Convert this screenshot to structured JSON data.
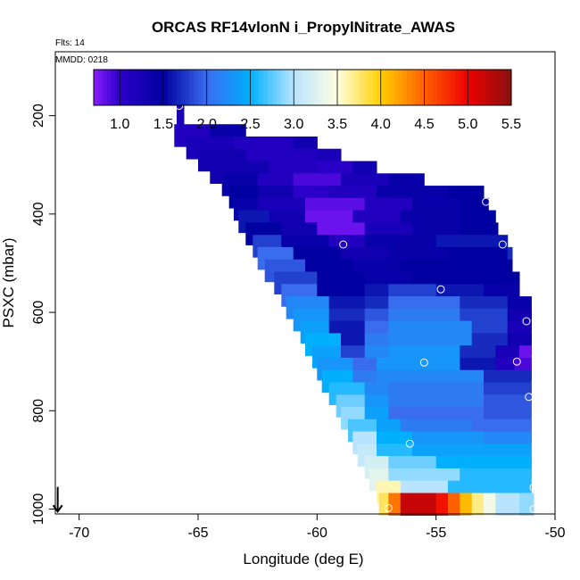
{
  "chart_data": {
    "type": "heatmap",
    "title": "ORCAS RF14vlonN i_PropylNitrate_AWAS",
    "annotations": {
      "flights": "Flts: 14",
      "date": "MMDD: 0218"
    },
    "xlabel": "Longitude (deg E)",
    "ylabel": "PSXC (mbar)",
    "xlim": [
      -71,
      -50
    ],
    "ylim": [
      1010,
      70
    ],
    "x_ticks": [
      -70,
      -65,
      -60,
      -55,
      -50
    ],
    "x_tick_labels": [
      "-70",
      "-65",
      "-60",
      "-55",
      "-50"
    ],
    "y_ticks": [
      200,
      400,
      600,
      800,
      1000
    ],
    "y_tick_labels": [
      "200",
      "400",
      "600",
      "800",
      "1000"
    ],
    "colorbar": {
      "range": [
        0.7,
        5.5
      ],
      "ticks": [
        1.0,
        1.5,
        2.0,
        2.5,
        3.0,
        3.5,
        4.0,
        4.5,
        5.0,
        5.5
      ],
      "tick_labels": [
        "1.0",
        "1.5",
        "2.0",
        "2.5",
        "3.0",
        "3.5",
        "4.0",
        "4.5",
        "5.0",
        "5.5"
      ],
      "stops": [
        [
          0.7,
          "#8a1cff"
        ],
        [
          1.0,
          "#2a00c8"
        ],
        [
          1.5,
          "#0000a0"
        ],
        [
          2.0,
          "#3a6cee"
        ],
        [
          2.5,
          "#00b0ff"
        ],
        [
          3.0,
          "#b8e4ff"
        ],
        [
          3.5,
          "#ffffe0"
        ],
        [
          4.0,
          "#ffd000"
        ],
        [
          4.5,
          "#ff6000"
        ],
        [
          5.0,
          "#ee0000"
        ],
        [
          5.5,
          "#8a1010"
        ]
      ]
    },
    "series": [
      {
        "p": 180,
        "cells": [
          [
            -65.9,
            -65.6,
            1.1
          ]
        ]
      },
      {
        "p": 200,
        "cells": [
          [
            -65.9,
            -65.6,
            1.2
          ]
        ]
      },
      {
        "p": 240,
        "cells": [
          [
            -66.0,
            -64.5,
            1.1
          ],
          [
            -64.5,
            -63.0,
            1.4
          ]
        ]
      },
      {
        "p": 265,
        "cells": [
          [
            -65.5,
            -63.5,
            1.2
          ],
          [
            -63.5,
            -61.0,
            1.1
          ],
          [
            -61.0,
            -60.0,
            1.3
          ]
        ]
      },
      {
        "p": 290,
        "cells": [
          [
            -65.0,
            -63.0,
            1.3
          ],
          [
            -63.0,
            -60.0,
            1.1
          ],
          [
            -60.0,
            -59.0,
            1.2
          ]
        ]
      },
      {
        "p": 315,
        "cells": [
          [
            -64.5,
            -62.0,
            1.3
          ],
          [
            -62.0,
            -60.0,
            1.1
          ],
          [
            -60.0,
            -58.5,
            1.0
          ],
          [
            -58.5,
            -57.5,
            1.3
          ]
        ]
      },
      {
        "p": 340,
        "cells": [
          [
            -64.0,
            -62.5,
            1.4
          ],
          [
            -62.5,
            -61.0,
            1.1
          ],
          [
            -61.0,
            -59.0,
            0.9
          ],
          [
            -59.0,
            -57.0,
            1.2
          ],
          [
            -57.0,
            -55.5,
            1.4
          ]
        ]
      },
      {
        "p": 365,
        "cells": [
          [
            -63.7,
            -62.5,
            1.5
          ],
          [
            -62.5,
            -61.0,
            1.3
          ],
          [
            -61.0,
            -59.5,
            1.0
          ],
          [
            -59.5,
            -57.5,
            1.1
          ],
          [
            -57.5,
            -54.5,
            1.4
          ],
          [
            -54.5,
            -53.0,
            1.5
          ]
        ]
      },
      {
        "p": 390,
        "cells": [
          [
            -63.5,
            -62.5,
            1.4
          ],
          [
            -62.5,
            -60.5,
            1.2
          ],
          [
            -60.5,
            -58.0,
            0.85
          ],
          [
            -58.0,
            -56.0,
            1.1
          ],
          [
            -56.0,
            -54.0,
            1.4
          ],
          [
            -54.0,
            -52.8,
            1.5
          ]
        ]
      },
      {
        "p": 415,
        "cells": [
          [
            -63.3,
            -62.0,
            1.6
          ],
          [
            -62.0,
            -60.5,
            1.3
          ],
          [
            -60.5,
            -58.5,
            0.8
          ],
          [
            -58.5,
            -56.5,
            1.1
          ],
          [
            -56.5,
            -54.0,
            1.4
          ],
          [
            -54.0,
            -52.5,
            1.5
          ]
        ]
      },
      {
        "p": 440,
        "cells": [
          [
            -63.0,
            -61.5,
            1.5
          ],
          [
            -61.5,
            -60.0,
            1.3
          ],
          [
            -60.0,
            -58.0,
            0.8
          ],
          [
            -58.0,
            -56.0,
            1.2
          ],
          [
            -56.0,
            -54.0,
            1.4
          ],
          [
            -54.0,
            -52.4,
            1.5
          ]
        ]
      },
      {
        "p": 465,
        "cells": [
          [
            -62.7,
            -61.5,
            1.8
          ],
          [
            -61.5,
            -59.5,
            1.4
          ],
          [
            -59.5,
            -58.0,
            1.1
          ],
          [
            -58.0,
            -55.0,
            1.4
          ],
          [
            -55.0,
            -52.0,
            1.6
          ]
        ]
      },
      {
        "p": 490,
        "cells": [
          [
            -62.5,
            -61.0,
            2.0
          ],
          [
            -61.0,
            -59.0,
            1.5
          ],
          [
            -59.0,
            -57.0,
            1.3
          ],
          [
            -57.0,
            -54.5,
            1.4
          ],
          [
            -54.5,
            -52.0,
            1.5
          ],
          [
            -52.0,
            -51.8,
            1.7
          ]
        ]
      },
      {
        "p": 515,
        "cells": [
          [
            -62.2,
            -60.5,
            1.9
          ],
          [
            -60.5,
            -58.5,
            1.5
          ],
          [
            -58.5,
            -56.5,
            1.4
          ],
          [
            -56.5,
            -54.0,
            1.5
          ],
          [
            -54.0,
            -51.8,
            1.5
          ]
        ]
      },
      {
        "p": 540,
        "cells": [
          [
            -61.8,
            -60.0,
            1.8
          ],
          [
            -60.0,
            -58.0,
            1.5
          ],
          [
            -58.0,
            -56.0,
            1.4
          ],
          [
            -56.0,
            -53.5,
            1.5
          ],
          [
            -53.5,
            -51.5,
            1.5
          ]
        ]
      },
      {
        "p": 565,
        "cells": [
          [
            -61.5,
            -60.0,
            2.0
          ],
          [
            -60.0,
            -58.0,
            1.5
          ],
          [
            -58.0,
            -57.0,
            1.6
          ],
          [
            -57.0,
            -55.0,
            1.8
          ],
          [
            -55.0,
            -53.0,
            1.6
          ],
          [
            -53.0,
            -51.5,
            1.4
          ]
        ]
      },
      {
        "p": 590,
        "cells": [
          [
            -61.3,
            -59.5,
            2.2
          ],
          [
            -59.5,
            -58.0,
            1.6
          ],
          [
            -58.0,
            -57.0,
            1.7
          ],
          [
            -57.0,
            -54.0,
            2.0
          ],
          [
            -54.0,
            -52.0,
            1.7
          ],
          [
            -52.0,
            -51.0,
            1.4
          ]
        ]
      },
      {
        "p": 615,
        "cells": [
          [
            -61.0,
            -59.5,
            2.3
          ],
          [
            -59.5,
            -58.0,
            1.7
          ],
          [
            -58.0,
            -57.0,
            1.9
          ],
          [
            -57.0,
            -54.0,
            2.1
          ],
          [
            -54.0,
            -52.0,
            1.8
          ],
          [
            -52.0,
            -51.0,
            1.3
          ]
        ]
      },
      {
        "p": 640,
        "cells": [
          [
            -60.7,
            -59.5,
            2.4
          ],
          [
            -59.5,
            -58.0,
            1.6
          ],
          [
            -58.0,
            -57.0,
            2.0
          ],
          [
            -57.0,
            -53.5,
            2.2
          ],
          [
            -53.5,
            -52.0,
            1.8
          ],
          [
            -52.0,
            -51.0,
            1.2
          ]
        ]
      },
      {
        "p": 665,
        "cells": [
          [
            -60.5,
            -59.0,
            2.5
          ],
          [
            -59.0,
            -58.0,
            1.6
          ],
          [
            -58.0,
            -57.0,
            2.1
          ],
          [
            -57.0,
            -53.5,
            2.2
          ],
          [
            -53.5,
            -52.0,
            1.7
          ],
          [
            -52.0,
            -51.0,
            1.3
          ]
        ]
      },
      {
        "p": 690,
        "cells": [
          [
            -60.2,
            -59.0,
            2.4
          ],
          [
            -59.0,
            -58.0,
            1.8
          ],
          [
            -58.0,
            -57.0,
            2.2
          ],
          [
            -57.0,
            -54.0,
            2.3
          ],
          [
            -54.0,
            -52.5,
            1.7
          ],
          [
            -52.5,
            -51.5,
            1.2
          ],
          [
            -51.5,
            -51.0,
            0.8
          ]
        ]
      },
      {
        "p": 715,
        "cells": [
          [
            -60.0,
            -58.5,
            2.3
          ],
          [
            -58.5,
            -57.5,
            2.0
          ],
          [
            -57.5,
            -54.0,
            2.3
          ],
          [
            -54.0,
            -52.5,
            1.6
          ],
          [
            -52.5,
            -51.7,
            1.1
          ],
          [
            -51.7,
            -51.0,
            0.9
          ]
        ]
      },
      {
        "p": 740,
        "cells": [
          [
            -59.8,
            -58.5,
            2.5
          ],
          [
            -58.5,
            -57.5,
            2.1
          ],
          [
            -57.5,
            -53.0,
            2.2
          ],
          [
            -53.0,
            -51.0,
            1.7
          ]
        ]
      },
      {
        "p": 765,
        "cells": [
          [
            -59.5,
            -58.0,
            2.6
          ],
          [
            -58.0,
            -57.0,
            2.2
          ],
          [
            -57.0,
            -53.0,
            2.1
          ],
          [
            -53.0,
            -51.0,
            1.8
          ]
        ]
      },
      {
        "p": 790,
        "cells": [
          [
            -59.2,
            -58.0,
            2.8
          ],
          [
            -58.0,
            -57.0,
            2.3
          ],
          [
            -57.0,
            -53.0,
            2.1
          ],
          [
            -53.0,
            -51.0,
            1.9
          ]
        ]
      },
      {
        "p": 815,
        "cells": [
          [
            -59.0,
            -58.0,
            2.9
          ],
          [
            -58.0,
            -57.0,
            2.4
          ],
          [
            -57.0,
            -53.0,
            2.0
          ],
          [
            -53.0,
            -51.0,
            1.9
          ]
        ]
      },
      {
        "p": 840,
        "cells": [
          [
            -58.7,
            -57.5,
            2.7
          ],
          [
            -57.5,
            -56.5,
            2.4
          ],
          [
            -56.5,
            -53.5,
            2.1
          ],
          [
            -53.5,
            -51.0,
            2.0
          ]
        ]
      },
      {
        "p": 865,
        "cells": [
          [
            -58.5,
            -57.5,
            3.0
          ],
          [
            -57.5,
            -56.0,
            2.5
          ],
          [
            -56.0,
            -53.0,
            2.3
          ],
          [
            -53.0,
            -51.0,
            2.2
          ]
        ]
      },
      {
        "p": 890,
        "cells": [
          [
            -58.3,
            -57.5,
            3.1
          ],
          [
            -57.5,
            -56.0,
            2.6
          ],
          [
            -56.0,
            -51.0,
            2.4
          ]
        ]
      },
      {
        "p": 915,
        "cells": [
          [
            -58.0,
            -57.0,
            3.2
          ],
          [
            -57.0,
            -55.0,
            2.8
          ],
          [
            -55.0,
            -51.0,
            2.5
          ]
        ]
      },
      {
        "p": 940,
        "cells": [
          [
            -57.8,
            -57.0,
            3.3
          ],
          [
            -57.0,
            -54.0,
            2.9
          ],
          [
            -54.0,
            -51.0,
            2.6
          ]
        ]
      },
      {
        "p": 965,
        "cells": [
          [
            -57.5,
            -56.5,
            3.6
          ],
          [
            -56.5,
            -54.5,
            3.0
          ],
          [
            -54.5,
            -51.0,
            2.6
          ]
        ]
      },
      {
        "p": 990,
        "cells": [
          [
            -57.4,
            -57.0,
            3.8
          ],
          [
            -57.0,
            -56.5,
            4.4
          ],
          [
            -56.5,
            -55.0,
            5.2
          ],
          [
            -55.0,
            -54.5,
            4.9
          ],
          [
            -54.5,
            -54.0,
            4.5
          ],
          [
            -54.0,
            -53.5,
            4.1
          ],
          [
            -53.5,
            -53.0,
            3.7
          ],
          [
            -53.0,
            -52.5,
            3.4
          ],
          [
            -52.5,
            -51.5,
            3.0
          ],
          [
            -51.5,
            -50.9,
            2.9
          ]
        ]
      }
    ],
    "points": [
      {
        "x": -65.8,
        "y": 180
      },
      {
        "x": -52.9,
        "y": 375
      },
      {
        "x": -58.9,
        "y": 462
      },
      {
        "x": -52.2,
        "y": 462
      },
      {
        "x": -54.8,
        "y": 553
      },
      {
        "x": -51.2,
        "y": 618
      },
      {
        "x": -55.5,
        "y": 702
      },
      {
        "x": -51.6,
        "y": 700
      },
      {
        "x": -51.1,
        "y": 772
      },
      {
        "x": -56.1,
        "y": 867
      },
      {
        "x": -50.9,
        "y": 956
      },
      {
        "x": -57.0,
        "y": 998
      },
      {
        "x": -50.9,
        "y": 1000
      }
    ],
    "arrow": {
      "x": -70.9,
      "from_p": 955,
      "to_p": 1005
    }
  }
}
